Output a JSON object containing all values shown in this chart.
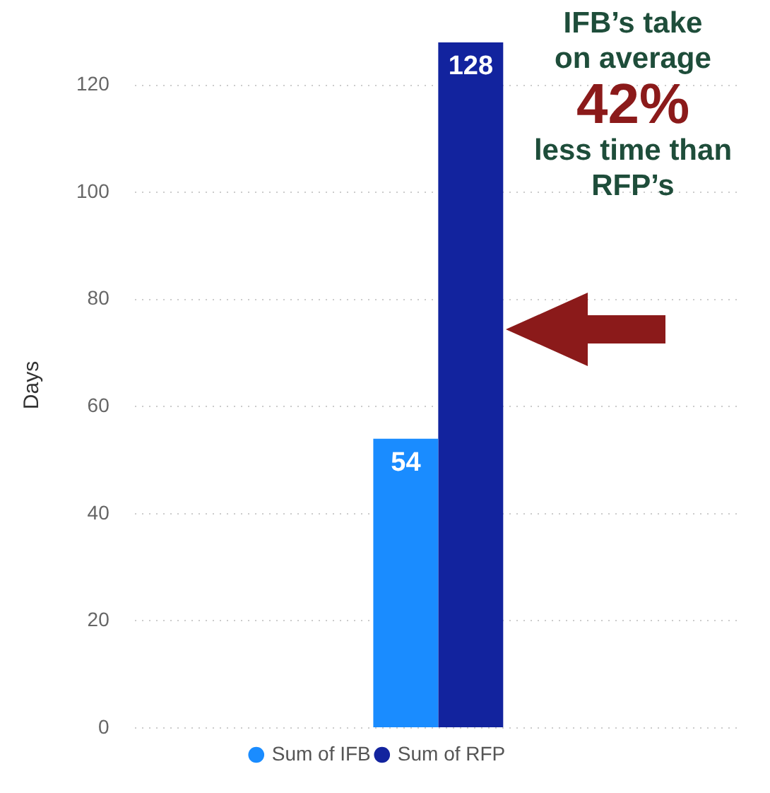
{
  "chart_data": {
    "type": "bar",
    "ylabel": "Days",
    "categories": [
      null
    ],
    "series": [
      {
        "name": "Sum of IFB",
        "color": "#1a8cff",
        "values": [
          54
        ]
      },
      {
        "name": "Sum of RFP",
        "color": "#12239e",
        "values": [
          128
        ]
      }
    ],
    "ylim": [
      0,
      128
    ],
    "yticks": [
      0,
      20,
      40,
      60,
      80,
      100,
      120
    ],
    "grid": "y",
    "legend": "bottom",
    "data_labels": true,
    "annotations": [
      "IFB’s take on average",
      "42%",
      "less time than RFP’s"
    ]
  }
}
